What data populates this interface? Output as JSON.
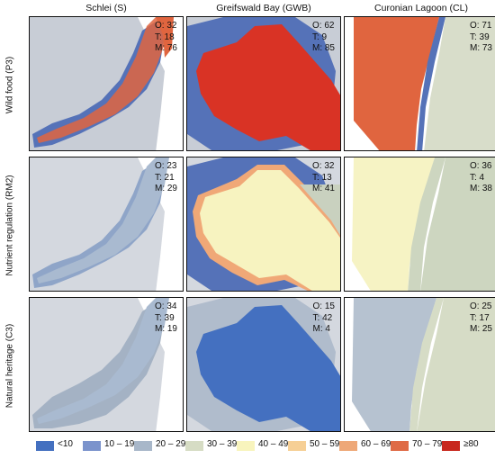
{
  "columns": [
    {
      "label": "Schlei (S)"
    },
    {
      "label": "Greifswald Bay (GWB)"
    },
    {
      "label": "Curonian Lagoon (CL)"
    }
  ],
  "rows": [
    {
      "label": "Wild food (P3)"
    },
    {
      "label": "Nutrient regulation (RM2)"
    },
    {
      "label": "Natural heritage (C3)"
    }
  ],
  "panels": [
    [
      {
        "o": "O: 32",
        "t": "T: 18",
        "m": "M: 76",
        "water_color": "#e0653f",
        "land_color": "#5572b8"
      },
      {
        "o": "O: 62",
        "t": "T: 9",
        "m": "M: 85",
        "water_color": "#d93325",
        "land_color": "#5572b8"
      },
      {
        "o": "O: 71",
        "t": "T: 39",
        "m": "M: 73",
        "water_color": "#e0653f",
        "land_color": "#5572b8"
      }
    ],
    [
      {
        "o": "O: 23",
        "t": "T: 21",
        "m": "M: 29",
        "water_color": "#a9bad0",
        "land_color": "#8fa5c8"
      },
      {
        "o": "O: 32",
        "t": "T: 13",
        "m": "M: 41",
        "water_color": "#f7f3c0",
        "land_color": "#5572b8"
      },
      {
        "o": "O: 36",
        "t": "T: 4",
        "m": "M: 38",
        "water_color": "#f6f3c4",
        "land_color": "#cdd6c0"
      }
    ],
    [
      {
        "o": "O: 34",
        "t": "T: 39",
        "m": "M: 19",
        "water_color": "#a9bad0",
        "land_color": "#a4b2c4"
      },
      {
        "o": "O: 15",
        "t": "T: 42",
        "m": "M: 4",
        "water_color": "#4470c0",
        "land_color": "#b0bccc"
      },
      {
        "o": "O: 25",
        "t": "T: 17",
        "m": "M: 25",
        "water_color": "#b6c2d0",
        "land_color": "#d6dcc6"
      }
    ]
  ],
  "legend": [
    {
      "label": "<10",
      "color": "#4470c0"
    },
    {
      "label": "10 – 19",
      "color": "#7b93cc"
    },
    {
      "label": "20 – 29",
      "color": "#a8b7c9"
    },
    {
      "label": "30 – 39",
      "color": "#d6dcc4"
    },
    {
      "label": "40 – 49",
      "color": "#f8f4bd"
    },
    {
      "label": "50 – 59",
      "color": "#f6cf95"
    },
    {
      "label": "60 – 69",
      "color": "#eea878"
    },
    {
      "label": "70 – 79",
      "color": "#df6a45"
    },
    {
      "label": "≥80",
      "color": "#c8281e"
    }
  ]
}
